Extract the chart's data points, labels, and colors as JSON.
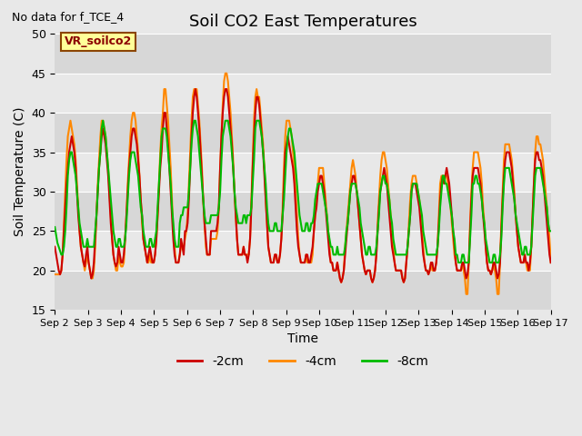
{
  "title": "Soil CO2 East Temperatures",
  "xlabel": "Time",
  "ylabel": "Soil Temperature (C)",
  "top_left_text": "No data for f_TCE_4",
  "annotation_box": "VR_soilco2",
  "ylim": [
    15,
    50
  ],
  "yticks": [
    15,
    20,
    25,
    30,
    35,
    40,
    45,
    50
  ],
  "bg_color": "#e8e8e8",
  "line_colors": {
    "-2cm": "#cc0000",
    "-4cm": "#ff8800",
    "-8cm": "#00bb00"
  },
  "line_widths": {
    "-2cm": 1.5,
    "-4cm": 1.5,
    "-8cm": 1.5
  },
  "x_tick_labels": [
    "Sep 2",
    "Sep 3",
    "Sep 4",
    "Sep 5",
    "Sep 6",
    "Sep 7",
    "Sep 8",
    "Sep 9",
    "Sep 10",
    "Sep 11",
    "Sep 12",
    "Sep 13",
    "Sep 14",
    "Sep 15",
    "Sep 16",
    "Sep 17"
  ],
  "num_days": 15,
  "samples_per_day": 48,
  "t_2cm": [
    23,
    22,
    21,
    20,
    19.5,
    20,
    22,
    25,
    28,
    31,
    33,
    35,
    36,
    37,
    36,
    35,
    33,
    30,
    27,
    25,
    23,
    22,
    21,
    20.5,
    22,
    23,
    21,
    20,
    19,
    19.5,
    21,
    24,
    27,
    30,
    33,
    35,
    37,
    38,
    37,
    36,
    34,
    32,
    29,
    26,
    24,
    22,
    21,
    20.5,
    21,
    23,
    22,
    21,
    21,
    22,
    24,
    27,
    30,
    33,
    35,
    37,
    38,
    38,
    37,
    36,
    34,
    32,
    29,
    27,
    24,
    23,
    22,
    21,
    22,
    23,
    22,
    21,
    21,
    22,
    24,
    27,
    30,
    33,
    35,
    38,
    40,
    40,
    38,
    36,
    33,
    30,
    27,
    24,
    22,
    21,
    21,
    21,
    22,
    24,
    23,
    22,
    25,
    25,
    26,
    29,
    33,
    37,
    40,
    42,
    43,
    42,
    40,
    38,
    35,
    32,
    29,
    26,
    24,
    22,
    22,
    22,
    25,
    25,
    25,
    25,
    25,
    26,
    28,
    33,
    37,
    40,
    42,
    43,
    43,
    42,
    40,
    38,
    36,
    33,
    30,
    27,
    24,
    22,
    22,
    22,
    22,
    23,
    22,
    22,
    21,
    22,
    24,
    28,
    33,
    37,
    40,
    42,
    42,
    41,
    39,
    37,
    35,
    32,
    29,
    26,
    23,
    22,
    21,
    21,
    21,
    22,
    22,
    21,
    21,
    22,
    24,
    27,
    31,
    35,
    36,
    37,
    36,
    35,
    34,
    33,
    31,
    28,
    25,
    23,
    22,
    21,
    21,
    21,
    21,
    22,
    22,
    21,
    21,
    22,
    23,
    25,
    27,
    28,
    30,
    31,
    32,
    32,
    31,
    30,
    28,
    26,
    24,
    22,
    21,
    21,
    20,
    20,
    20,
    21,
    20,
    19,
    18.5,
    19,
    20,
    22,
    24,
    26,
    28,
    30,
    31,
    32,
    32,
    31,
    30,
    28,
    26,
    24,
    22,
    21,
    20,
    19.5,
    20,
    20,
    20,
    19,
    18.5,
    19,
    20,
    22,
    25,
    28,
    30,
    31,
    32,
    33,
    32,
    31,
    29,
    27,
    25,
    23,
    22,
    21,
    20,
    20,
    20,
    20,
    20,
    19,
    18.5,
    19,
    21,
    23,
    25,
    27,
    30,
    31,
    31,
    31,
    30,
    29,
    28,
    26,
    24,
    22,
    21,
    20,
    20,
    19.5,
    20,
    21,
    21,
    20,
    20,
    21,
    23,
    26,
    29,
    31,
    32,
    31,
    32,
    33,
    32,
    31,
    29,
    27,
    25,
    23,
    21,
    20,
    20,
    20,
    20,
    21,
    21,
    20,
    19,
    19.5,
    21,
    25,
    29,
    32,
    33,
    33,
    33,
    33,
    32,
    31,
    29,
    27,
    25,
    23,
    21,
    20,
    20,
    19.5,
    20,
    21,
    21,
    20,
    19,
    19.5,
    21,
    25,
    29,
    32,
    34,
    35,
    35,
    35,
    34,
    33,
    31,
    29,
    27,
    25,
    23,
    22,
    21,
    21,
    21,
    22,
    21,
    21,
    20,
    21,
    23,
    27,
    31,
    34,
    35,
    35,
    34,
    34,
    33,
    32,
    30,
    28,
    26,
    24,
    22,
    21
  ],
  "t_4cm": [
    19.5,
    19.5,
    19.5,
    19.5,
    19.5,
    20,
    22,
    26,
    30,
    34,
    37,
    38,
    39,
    38,
    37,
    36,
    34,
    31,
    28,
    25,
    23,
    22,
    21,
    20,
    21,
    22,
    21,
    20,
    19,
    19,
    20,
    23,
    27,
    31,
    34,
    37,
    39,
    39,
    38,
    37,
    35,
    33,
    30,
    27,
    24,
    22,
    21,
    20,
    20,
    22,
    21,
    20.5,
    20.5,
    21,
    24,
    27,
    31,
    34,
    37,
    39,
    40,
    40,
    39,
    37,
    35,
    32,
    29,
    26,
    24,
    23,
    22,
    21,
    21,
    22,
    21,
    21,
    21,
    22,
    24,
    27,
    31,
    35,
    38,
    40,
    43,
    43,
    41,
    39,
    36,
    33,
    29,
    25,
    23,
    21,
    21,
    21,
    22,
    23,
    23,
    23,
    24,
    25,
    27,
    31,
    35,
    39,
    42,
    43,
    43,
    43,
    41,
    39,
    36,
    33,
    29,
    26,
    23,
    22,
    22,
    22,
    24,
    24,
    24,
    24,
    24,
    25,
    28,
    33,
    37,
    41,
    44,
    45,
    45,
    44,
    42,
    40,
    37,
    34,
    30,
    27,
    24,
    22,
    22,
    22,
    22,
    23,
    22,
    22,
    22,
    22,
    24,
    29,
    34,
    39,
    42,
    43,
    42,
    42,
    40,
    38,
    36,
    33,
    29,
    26,
    23,
    22,
    21,
    21,
    21,
    22,
    22,
    21,
    21,
    22,
    24,
    28,
    33,
    37,
    39,
    39,
    39,
    38,
    37,
    35,
    33,
    30,
    27,
    24,
    22,
    21,
    21,
    21,
    21,
    22,
    21,
    21,
    21,
    21,
    22,
    25,
    27,
    29,
    31,
    33,
    33,
    33,
    33,
    31,
    29,
    27,
    25,
    23,
    21,
    21,
    20,
    20,
    20,
    21,
    20,
    19,
    18.5,
    19,
    20,
    23,
    25,
    27,
    29,
    31,
    33,
    34,
    33,
    32,
    30,
    28,
    26,
    24,
    22,
    21,
    20,
    19.5,
    20,
    20,
    20,
    19,
    18.5,
    19,
    20,
    22,
    26,
    29,
    32,
    34,
    35,
    35,
    34,
    33,
    31,
    29,
    27,
    25,
    23,
    21,
    20,
    20,
    20,
    20,
    20,
    19,
    18.5,
    19,
    21,
    23,
    26,
    29,
    31,
    32,
    32,
    32,
    31,
    30,
    29,
    27,
    25,
    23,
    21,
    20,
    20,
    19.5,
    20,
    21,
    20,
    20,
    20,
    21,
    23,
    27,
    31,
    32,
    32,
    32,
    32,
    32,
    31,
    30,
    28,
    26,
    24,
    22,
    21,
    20,
    20,
    20,
    20,
    21,
    20,
    19,
    17,
    17,
    21,
    26,
    30,
    33,
    35,
    35,
    35,
    35,
    34,
    33,
    31,
    28,
    26,
    23,
    21,
    20,
    20,
    19.5,
    20,
    21,
    20,
    19,
    17,
    17,
    21,
    26,
    30,
    34,
    36,
    36,
    36,
    36,
    35,
    34,
    32,
    30,
    27,
    25,
    23,
    22,
    21,
    21,
    21,
    22,
    21,
    20,
    20,
    20,
    23,
    27,
    31,
    35,
    37,
    37,
    36,
    36,
    35,
    34,
    32,
    30,
    28,
    26,
    24,
    21
  ],
  "t_8cm": [
    25.5,
    24.5,
    23.5,
    23,
    22.5,
    22,
    22,
    23,
    25,
    28,
    32,
    34,
    35,
    35,
    34,
    33,
    32,
    30,
    28,
    26,
    25,
    24,
    23,
    23,
    23,
    24,
    23,
    23,
    23,
    23,
    23,
    25,
    27,
    30,
    33,
    35,
    38,
    39,
    38,
    37,
    35,
    33,
    31,
    29,
    27,
    25,
    24,
    23,
    23,
    24,
    24,
    23,
    23,
    23,
    24,
    26,
    29,
    32,
    34,
    35,
    35,
    35,
    34,
    33,
    32,
    30,
    28,
    27,
    25,
    24,
    23,
    23,
    23,
    24,
    24,
    23,
    23,
    24,
    25,
    28,
    31,
    34,
    37,
    38,
    38,
    38,
    37,
    35,
    33,
    31,
    28,
    26,
    24,
    23,
    23,
    23,
    26,
    27,
    27,
    28,
    28,
    28,
    28,
    30,
    33,
    36,
    38,
    39,
    39,
    38,
    37,
    35,
    33,
    31,
    29,
    27,
    26,
    26,
    26,
    26,
    27,
    27,
    27,
    27,
    27,
    27,
    28,
    30,
    34,
    37,
    38,
    39,
    39,
    39,
    38,
    37,
    35,
    33,
    30,
    28,
    27,
    26,
    26,
    26,
    26,
    27,
    27,
    26,
    27,
    27,
    27,
    28,
    31,
    34,
    38,
    39,
    39,
    39,
    38,
    37,
    35,
    33,
    31,
    28,
    26,
    25,
    25,
    25,
    25,
    26,
    26,
    25,
    25,
    25,
    25,
    27,
    29,
    32,
    35,
    37,
    38,
    38,
    37,
    36,
    35,
    33,
    31,
    29,
    27,
    26,
    25,
    25,
    25,
    26,
    26,
    25,
    25,
    26,
    26,
    27,
    29,
    30,
    31,
    31,
    31,
    31,
    30,
    29,
    28,
    27,
    25,
    24,
    23,
    23,
    22,
    22,
    22,
    23,
    22,
    22,
    22,
    22,
    22,
    23,
    25,
    26,
    28,
    30,
    31,
    31,
    31,
    31,
    30,
    29,
    28,
    26,
    25,
    24,
    23,
    22,
    22,
    23,
    23,
    22,
    22,
    22,
    22,
    23,
    25,
    27,
    30,
    31,
    32,
    32,
    31,
    31,
    30,
    29,
    27,
    26,
    24,
    23,
    22,
    22,
    22,
    22,
    22,
    22,
    22,
    22,
    22,
    23,
    25,
    27,
    30,
    31,
    31,
    31,
    31,
    30,
    29,
    28,
    27,
    25,
    24,
    23,
    22,
    22,
    22,
    22,
    22,
    22,
    22,
    22,
    23,
    25,
    28,
    30,
    32,
    32,
    31,
    31,
    30,
    29,
    28,
    27,
    25,
    24,
    22,
    22,
    21,
    21,
    21,
    22,
    22,
    21,
    21,
    21,
    21,
    24,
    27,
    31,
    31,
    32,
    32,
    31,
    31,
    30,
    29,
    27,
    26,
    24,
    23,
    22,
    21,
    21,
    21,
    22,
    22,
    21,
    21,
    21,
    22,
    24,
    28,
    31,
    33,
    33,
    33,
    33,
    32,
    31,
    30,
    29,
    27,
    26,
    25,
    24,
    23,
    22,
    22,
    23,
    23,
    22,
    22,
    22,
    23,
    26,
    29,
    32,
    33,
    33,
    33,
    33,
    32,
    31,
    30,
    29,
    28,
    26,
    25,
    25
  ]
}
